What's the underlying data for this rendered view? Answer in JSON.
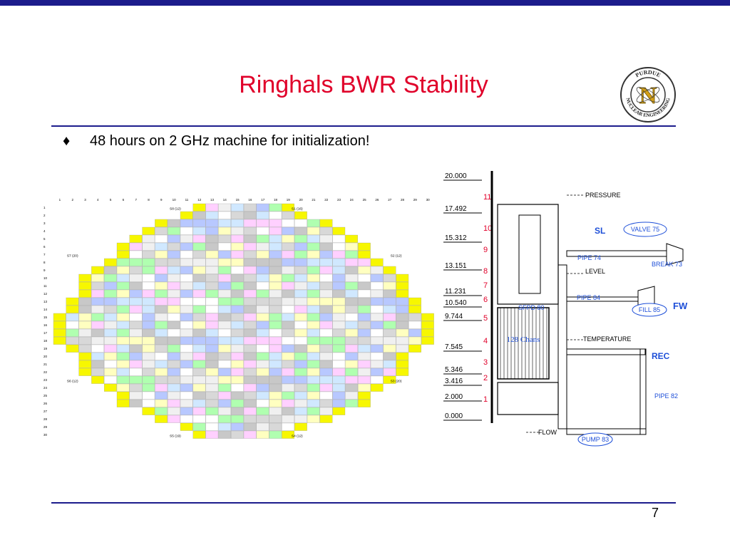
{
  "slide": {
    "title": "Ringhals BWR Stability",
    "bullet_symbol": "♦",
    "bullet": "48 hours on 2 GHz machine for initialization!",
    "page_number": "7"
  },
  "logo": {
    "top_text": "PURDUE",
    "bottom_text": "NUCLEAR ENGINEERING",
    "letter": "N"
  },
  "core_map": {
    "columns": [
      "1",
      "2",
      "3",
      "4",
      "5",
      "6",
      "7",
      "8",
      "9",
      "10",
      "11",
      "12",
      "13",
      "14",
      "15",
      "16",
      "17",
      "18",
      "19",
      "20",
      "21",
      "22",
      "23",
      "24",
      "25",
      "26",
      "27",
      "28",
      "29",
      "30"
    ],
    "rows": [
      "1",
      "2",
      "3",
      "4",
      "5",
      "6",
      "7",
      "8",
      "9",
      "10",
      "11",
      "12",
      "13",
      "14",
      "15",
      "16",
      "17",
      "18",
      "19",
      "20",
      "21",
      "22",
      "23",
      "24",
      "25",
      "26",
      "27",
      "28",
      "29",
      "30"
    ],
    "sector_labels": [
      "S8 (12)",
      "S1 (16)",
      "S7 (20)",
      "S2 (12)",
      "S6 (12)",
      "S3 (20)",
      "S5 (19)",
      "S4 (12)"
    ],
    "row_widths": [
      8,
      10,
      14,
      16,
      18,
      20,
      20,
      22,
      24,
      26,
      26,
      26,
      28,
      28,
      30,
      30,
      30,
      30,
      28,
      26,
      26,
      26,
      24,
      22,
      20,
      20,
      16,
      14,
      10,
      8
    ],
    "cell_colors": [
      "#f7f700",
      "#c8c8c8",
      "#f0f0f0",
      "#b0ffb0",
      "#ffd0ff",
      "#b8c8ff",
      "#ffffc0",
      "#d8d8d8",
      "#ffffff",
      "#d0e8ff"
    ]
  },
  "schematic": {
    "levels": [
      "20.000",
      "17.492",
      "15.312",
      "13.151",
      "11.231",
      "10.540",
      "9.744",
      "7.545",
      "5.346",
      "3.416",
      "2.000",
      "0.000"
    ],
    "node_numbers": [
      "11",
      "10",
      "9",
      "8",
      "7",
      "6",
      "5",
      "4",
      "3",
      "2",
      "1"
    ],
    "labels": {
      "pressure": "PRESSURE",
      "level": "LEVEL",
      "temperature": "TEMPERATURE",
      "flow": "FLOW",
      "sl": "SL",
      "fw": "FW",
      "rec": "REC",
      "valve": "VALVE 75",
      "pipe74": "PIPE 74",
      "break": "BREAK 73",
      "sfpd": "SFPD 80",
      "pipe84": "PIPE 84",
      "fill": "FILL 85",
      "chans": "128 Chans",
      "pipe82": "PIPE 82",
      "pump": "PUMP 83"
    },
    "colors": {
      "blue": "#1e4fd8",
      "black": "#000000",
      "ellipse": "#1e4fd8"
    }
  }
}
